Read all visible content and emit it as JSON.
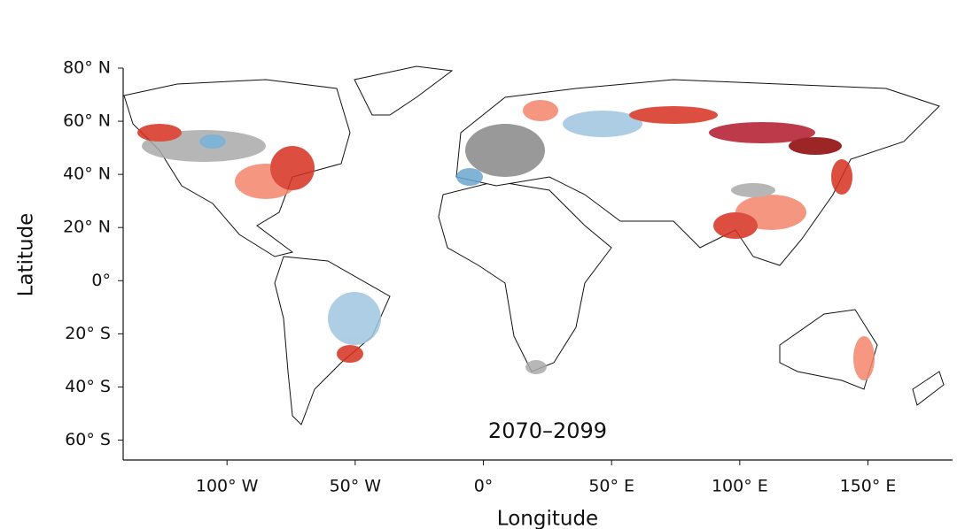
{
  "chart_data": {
    "type": "map",
    "x_label": "Longitude",
    "y_label": "Latitude",
    "annotation": "2070–2099",
    "xlim": [
      -140.5,
      183
    ],
    "ylim": [
      -67.5,
      80
    ],
    "xticks": [
      {
        "value": -100,
        "label": "100° W"
      },
      {
        "value": -50,
        "label": "50° W"
      },
      {
        "value": 0,
        "label": "0°"
      },
      {
        "value": 50,
        "label": "50° E"
      },
      {
        "value": 100,
        "label": "100° E"
      },
      {
        "value": 150,
        "label": "150° E"
      }
    ],
    "yticks": [
      {
        "value": 80,
        "label": "80° N"
      },
      {
        "value": 60,
        "label": "60° N"
      },
      {
        "value": 40,
        "label": "40° N"
      },
      {
        "value": 20,
        "label": "20° N"
      },
      {
        "value": 0,
        "label": "0°"
      },
      {
        "value": -20,
        "label": "20° S"
      },
      {
        "value": -40,
        "label": "40° S"
      },
      {
        "value": -60,
        "label": "60° S"
      }
    ]
  }
}
